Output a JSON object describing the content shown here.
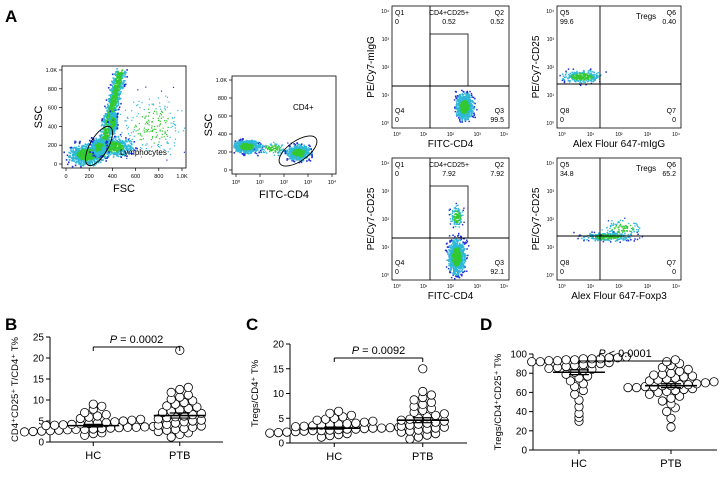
{
  "panel_labels": {
    "A": "A",
    "B": "B",
    "C": "C",
    "D": "D"
  },
  "colors": {
    "dense": "#32c832",
    "mid": "#2fb8d8",
    "sparse": "#1f30d8",
    "point_fill": "#ffffff",
    "axis": "#000000"
  },
  "panelA": {
    "plot1": {
      "xlabel": "FSC",
      "ylabel": "SSC",
      "xticks": [
        "0",
        "200",
        "400",
        "600",
        "800",
        "1.0K"
      ],
      "yticks": [
        "0",
        "200",
        "400",
        "600",
        "800",
        "1.0K"
      ],
      "gate_label": "Lymphocytes"
    },
    "plot2": {
      "xlabel": "FITC-CD4",
      "ylabel": "SSC",
      "xticks": [
        "10⁰",
        "10¹",
        "10²",
        "10³",
        "10⁴"
      ],
      "yticks": [
        "0",
        "200",
        "400",
        "600",
        "800",
        "1.0K"
      ],
      "gate_label": "CD4+"
    },
    "quad_ticks": [
      "10⁰",
      "10¹",
      "10²",
      "10³",
      "10⁴"
    ],
    "quad_plots": [
      {
        "id": "mIgG-CD25",
        "xlabel": "FITC-CD4",
        "ylabel": "PE/Cy7-mIgG",
        "gate_label": "CD4+CD25+",
        "quadrants": [
          {
            "name": "Q1",
            "value": "0"
          },
          {
            "name": "Q2",
            "value": "0.52"
          },
          {
            "name": "Q3",
            "value": "99.5"
          },
          {
            "name": "Q4",
            "value": "0"
          }
        ],
        "gate_value": "0.52"
      },
      {
        "id": "mIgG-Foxp3",
        "xlabel": "Alex Flour 647-mIgG",
        "ylabel": "PE/Cy7-CD25",
        "gate_label": "Tregs",
        "quadrants": [
          {
            "name": "Q5",
            "value": "99.6"
          },
          {
            "name": "Q6",
            "value": "0.40"
          },
          {
            "name": "Q7",
            "value": "0"
          },
          {
            "name": "Q8",
            "value": "0"
          }
        ]
      },
      {
        "id": "CD4-CD25",
        "xlabel": "FITC-CD4",
        "ylabel": "PE/Cy7-CD25",
        "gate_label": "CD4+CD25+",
        "quadrants": [
          {
            "name": "Q1",
            "value": "0"
          },
          {
            "name": "Q2",
            "value": "7.92"
          },
          {
            "name": "Q3",
            "value": "92.1"
          },
          {
            "name": "Q4",
            "value": "0"
          }
        ],
        "gate_value": "7.92"
      },
      {
        "id": "CD25-Foxp3",
        "xlabel": "Alex Flour 647-Foxp3",
        "ylabel": "PE/Cy7-CD25",
        "gate_label": "Tregs",
        "quadrants": [
          {
            "name": "Q5",
            "value": "34.8"
          },
          {
            "name": "Q6",
            "value": "65.2"
          },
          {
            "name": "Q7",
            "value": "0"
          },
          {
            "name": "Q8",
            "value": "0"
          }
        ]
      }
    ]
  },
  "chart_data": [
    {
      "type": "scatter",
      "panel": "B",
      "ylabel": "CD4⁺CD25⁺ T/CD4⁺ T%",
      "categories": [
        "HC",
        "PTB"
      ],
      "ylim": [
        0,
        25
      ],
      "yticks": [
        "0",
        "5",
        "10",
        "15",
        "20",
        "25"
      ],
      "p_value": "= 0.0002",
      "p_label": "P",
      "series": [
        {
          "name": "HC",
          "mean": 3.9,
          "sem": 0.3,
          "values": [
            1.6,
            2.0,
            2.2,
            2.4,
            2.5,
            2.6,
            2.7,
            2.8,
            2.9,
            3.0,
            3.0,
            3.1,
            3.2,
            3.3,
            3.4,
            3.5,
            3.5,
            3.6,
            3.7,
            3.8,
            3.9,
            4.0,
            4.1,
            4.2,
            4.3,
            4.4,
            4.5,
            4.6,
            4.8,
            5.0,
            5.2,
            5.4,
            5.6,
            5.9,
            6.2,
            6.5,
            7.0,
            7.8,
            8.5,
            9.0
          ]
        },
        {
          "name": "PTB",
          "mean": 6.3,
          "sem": 0.6,
          "values": [
            1.2,
            1.8,
            2.2,
            2.5,
            2.8,
            3.0,
            3.2,
            3.5,
            3.8,
            4.0,
            4.2,
            4.5,
            4.8,
            5.0,
            5.2,
            5.5,
            5.8,
            6.0,
            6.2,
            6.5,
            6.8,
            7.0,
            7.3,
            7.6,
            8.0,
            8.3,
            8.6,
            9.0,
            9.4,
            9.8,
            10.2,
            10.7,
            11.2,
            11.8,
            12.5,
            13.0,
            21.8
          ]
        }
      ]
    },
    {
      "type": "scatter",
      "panel": "C",
      "ylabel": "Tregs/CD4⁺ T%",
      "categories": [
        "HC",
        "PTB"
      ],
      "ylim": [
        0,
        20
      ],
      "yticks": [
        "0",
        "5",
        "10",
        "15",
        "20"
      ],
      "p_value": "= 0.0092",
      "p_label": "P",
      "series": [
        {
          "name": "HC",
          "mean": 3.0,
          "sem": 0.2,
          "values": [
            1.2,
            1.5,
            1.7,
            1.9,
            2.0,
            2.1,
            2.2,
            2.3,
            2.4,
            2.5,
            2.5,
            2.6,
            2.7,
            2.8,
            2.8,
            2.9,
            3.0,
            3.0,
            3.1,
            3.2,
            3.3,
            3.4,
            3.5,
            3.6,
            3.7,
            3.8,
            3.9,
            4.0,
            4.2,
            4.4,
            4.6,
            4.8,
            5.0,
            5.3,
            5.6,
            6.0,
            6.4
          ]
        },
        {
          "name": "PTB",
          "mean": 4.6,
          "sem": 0.5,
          "values": [
            0.8,
            1.2,
            1.6,
            1.9,
            2.2,
            2.4,
            2.6,
            2.8,
            3.0,
            3.2,
            3.4,
            3.6,
            3.8,
            4.0,
            4.2,
            4.4,
            4.6,
            4.8,
            5.0,
            5.3,
            5.6,
            5.9,
            6.2,
            6.6,
            7.0,
            7.4,
            7.8,
            8.2,
            8.7,
            9.2,
            9.7,
            10.4,
            15.0
          ]
        }
      ]
    },
    {
      "type": "scatter",
      "panel": "D",
      "ylabel": "Tregs/CD4⁺CD25⁺ T%",
      "categories": [
        "HC",
        "PTB"
      ],
      "ylim": [
        0,
        100
      ],
      "yticks": [
        "0",
        "20",
        "40",
        "60",
        "80",
        "100"
      ],
      "p_value": "< 0.0001",
      "p_label": "P",
      "series": [
        {
          "name": "HC",
          "mean": 81,
          "sem": 2.5,
          "values": [
            30,
            34,
            38,
            45,
            52,
            58,
            62,
            66,
            69,
            72,
            75,
            77,
            79,
            81,
            83,
            84,
            85,
            86,
            87,
            88,
            89,
            90,
            90,
            91,
            92,
            92,
            93,
            93,
            94,
            94,
            95,
            95,
            95,
            96,
            96,
            97
          ]
        },
        {
          "name": "PTB",
          "mean": 67,
          "sem": 2.0,
          "values": [
            24,
            33,
            40,
            44,
            48,
            51,
            54,
            56,
            58,
            60,
            61,
            62,
            63,
            64,
            65,
            65,
            66,
            66,
            67,
            67,
            68,
            68,
            69,
            70,
            71,
            72,
            73,
            74,
            75,
            76,
            77,
            78,
            79,
            80,
            82,
            84,
            86,
            88,
            90,
            92,
            94
          ]
        }
      ]
    }
  ]
}
